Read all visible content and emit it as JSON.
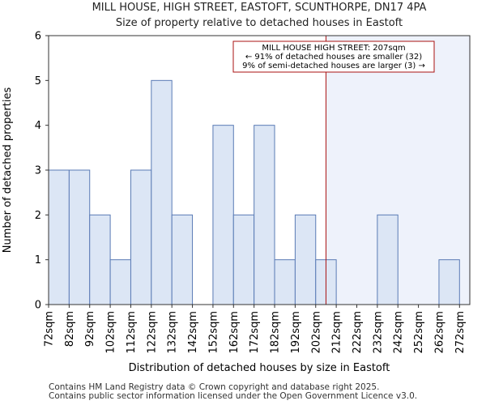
{
  "title": {
    "line1": "MILL HOUSE, HIGH STREET, EASTOFT, SCUNTHORPE, DN17 4PA",
    "line2": "Size of property relative to detached houses in Eastoft"
  },
  "chart_data": {
    "type": "bar",
    "xlabel": "Distribution of detached houses by size in Eastoft",
    "ylabel": "Number of detached properties",
    "ylim": [
      0,
      6
    ],
    "yticks": [
      0,
      1,
      2,
      3,
      4,
      5,
      6
    ],
    "xlim": [
      72,
      277
    ],
    "bin_edges": [
      72,
      82,
      92,
      102,
      112,
      122,
      132,
      142,
      152,
      162,
      172,
      182,
      192,
      202,
      212,
      222,
      232,
      242,
      252,
      262,
      272
    ],
    "tick_labels": [
      "72sqm",
      "82sqm",
      "92sqm",
      "102sqm",
      "112sqm",
      "122sqm",
      "132sqm",
      "142sqm",
      "152sqm",
      "162sqm",
      "172sqm",
      "182sqm",
      "192sqm",
      "202sqm",
      "212sqm",
      "222sqm",
      "232sqm",
      "242sqm",
      "252sqm",
      "262sqm",
      "272sqm"
    ],
    "categories": [
      "72-82",
      "82-92",
      "92-102",
      "102-112",
      "112-122",
      "122-132",
      "132-142",
      "142-152",
      "152-162",
      "162-172",
      "172-182",
      "182-192",
      "192-202",
      "202-212",
      "212-222",
      "222-232",
      "232-242",
      "242-252",
      "252-262",
      "262-272"
    ],
    "values": [
      3,
      3,
      2,
      1,
      3,
      5,
      2,
      0,
      4,
      2,
      4,
      1,
      2,
      1,
      0,
      0,
      2,
      0,
      0,
      1
    ],
    "subject_value": 207,
    "annotation": {
      "line1": "MILL HOUSE HIGH STREET: 207sqm",
      "line2": "← 91% of detached houses are smaller (32)",
      "line3": "9% of semi-detached houses are larger (3) →"
    }
  },
  "footer": {
    "line1": "Contains HM Land Registry data © Crown copyright and database right 2025.",
    "line2": "Contains public sector information licensed under the Open Government Licence v3.0."
  },
  "colors": {
    "bar_fill": "#dce6f5",
    "bar_stroke": "#5a7bb5",
    "highlight_region": "#eef2fb",
    "subject_line": "#aa1111",
    "annotation_border": "#aa1111"
  }
}
